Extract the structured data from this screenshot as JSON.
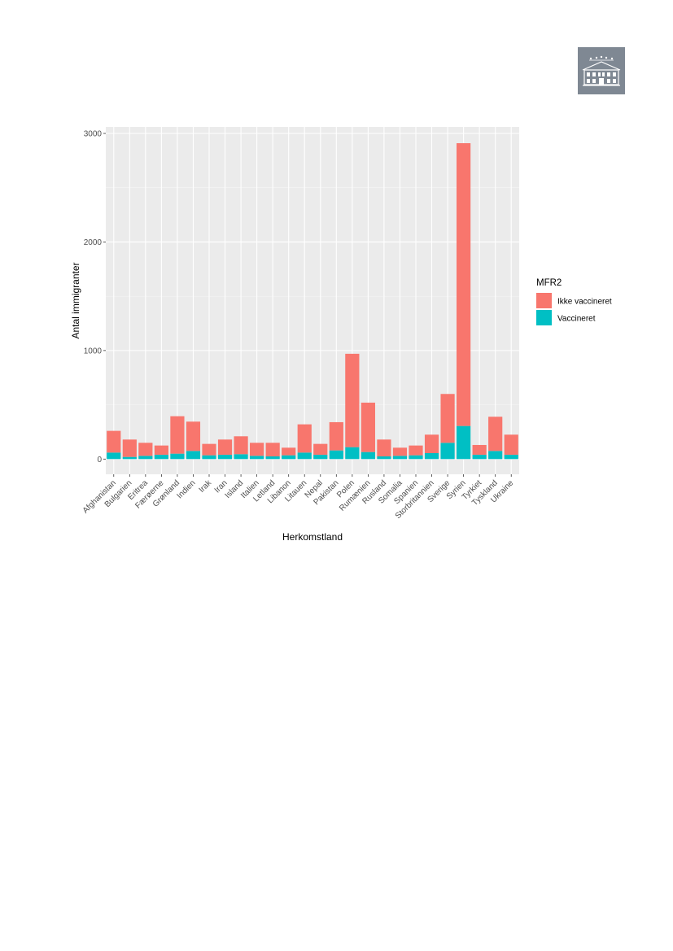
{
  "colors": {
    "panel": "#ebebeb",
    "grid_major": "#ffffff",
    "grid_minor": "#f5f5f5",
    "ikke_vaccineret": "#f8766d",
    "vaccineret": "#00bfc4",
    "logo_bg": "#7f8893"
  },
  "logo": {
    "icon": "building-icon"
  },
  "chart_data": {
    "type": "bar",
    "stacked": true,
    "xlabel": "Herkomstland",
    "ylabel": "Antal immigranter",
    "ylim": [
      -140,
      3060
    ],
    "yticks": [
      0,
      1000,
      2000,
      3000
    ],
    "ytick_labels": [
      "0",
      "1000",
      "2000",
      "3000"
    ],
    "grid": true,
    "legend": {
      "title": "MFR2",
      "position": "right"
    },
    "categories": [
      "Afghanistan",
      "Bulgarien",
      "Eritrea",
      "Færøerne",
      "Grønland",
      "Indien",
      "Irak",
      "Iran",
      "Island",
      "Italien",
      "Letland",
      "Libanon",
      "Litauen",
      "Nepal",
      "Pakistan",
      "Polen",
      "Rumænien",
      "Rusland",
      "Somalia",
      "Spanien",
      "Storbritannien",
      "Sverige",
      "Syrien",
      "Tyrkiet",
      "Tyskland",
      "Ukraine"
    ],
    "series": [
      {
        "name": "Vaccineret",
        "color": "#00bfc4",
        "values": [
          60,
          20,
          30,
          40,
          50,
          75,
          35,
          40,
          45,
          30,
          25,
          35,
          60,
          40,
          80,
          110,
          65,
          25,
          30,
          35,
          55,
          150,
          305,
          40,
          75,
          40
        ]
      },
      {
        "name": "Ikke vaccineret",
        "color": "#f8766d",
        "values": [
          200,
          160,
          120,
          85,
          345,
          270,
          105,
          140,
          165,
          120,
          125,
          70,
          260,
          100,
          260,
          860,
          455,
          155,
          75,
          90,
          170,
          450,
          2605,
          90,
          315,
          185
        ]
      }
    ]
  }
}
